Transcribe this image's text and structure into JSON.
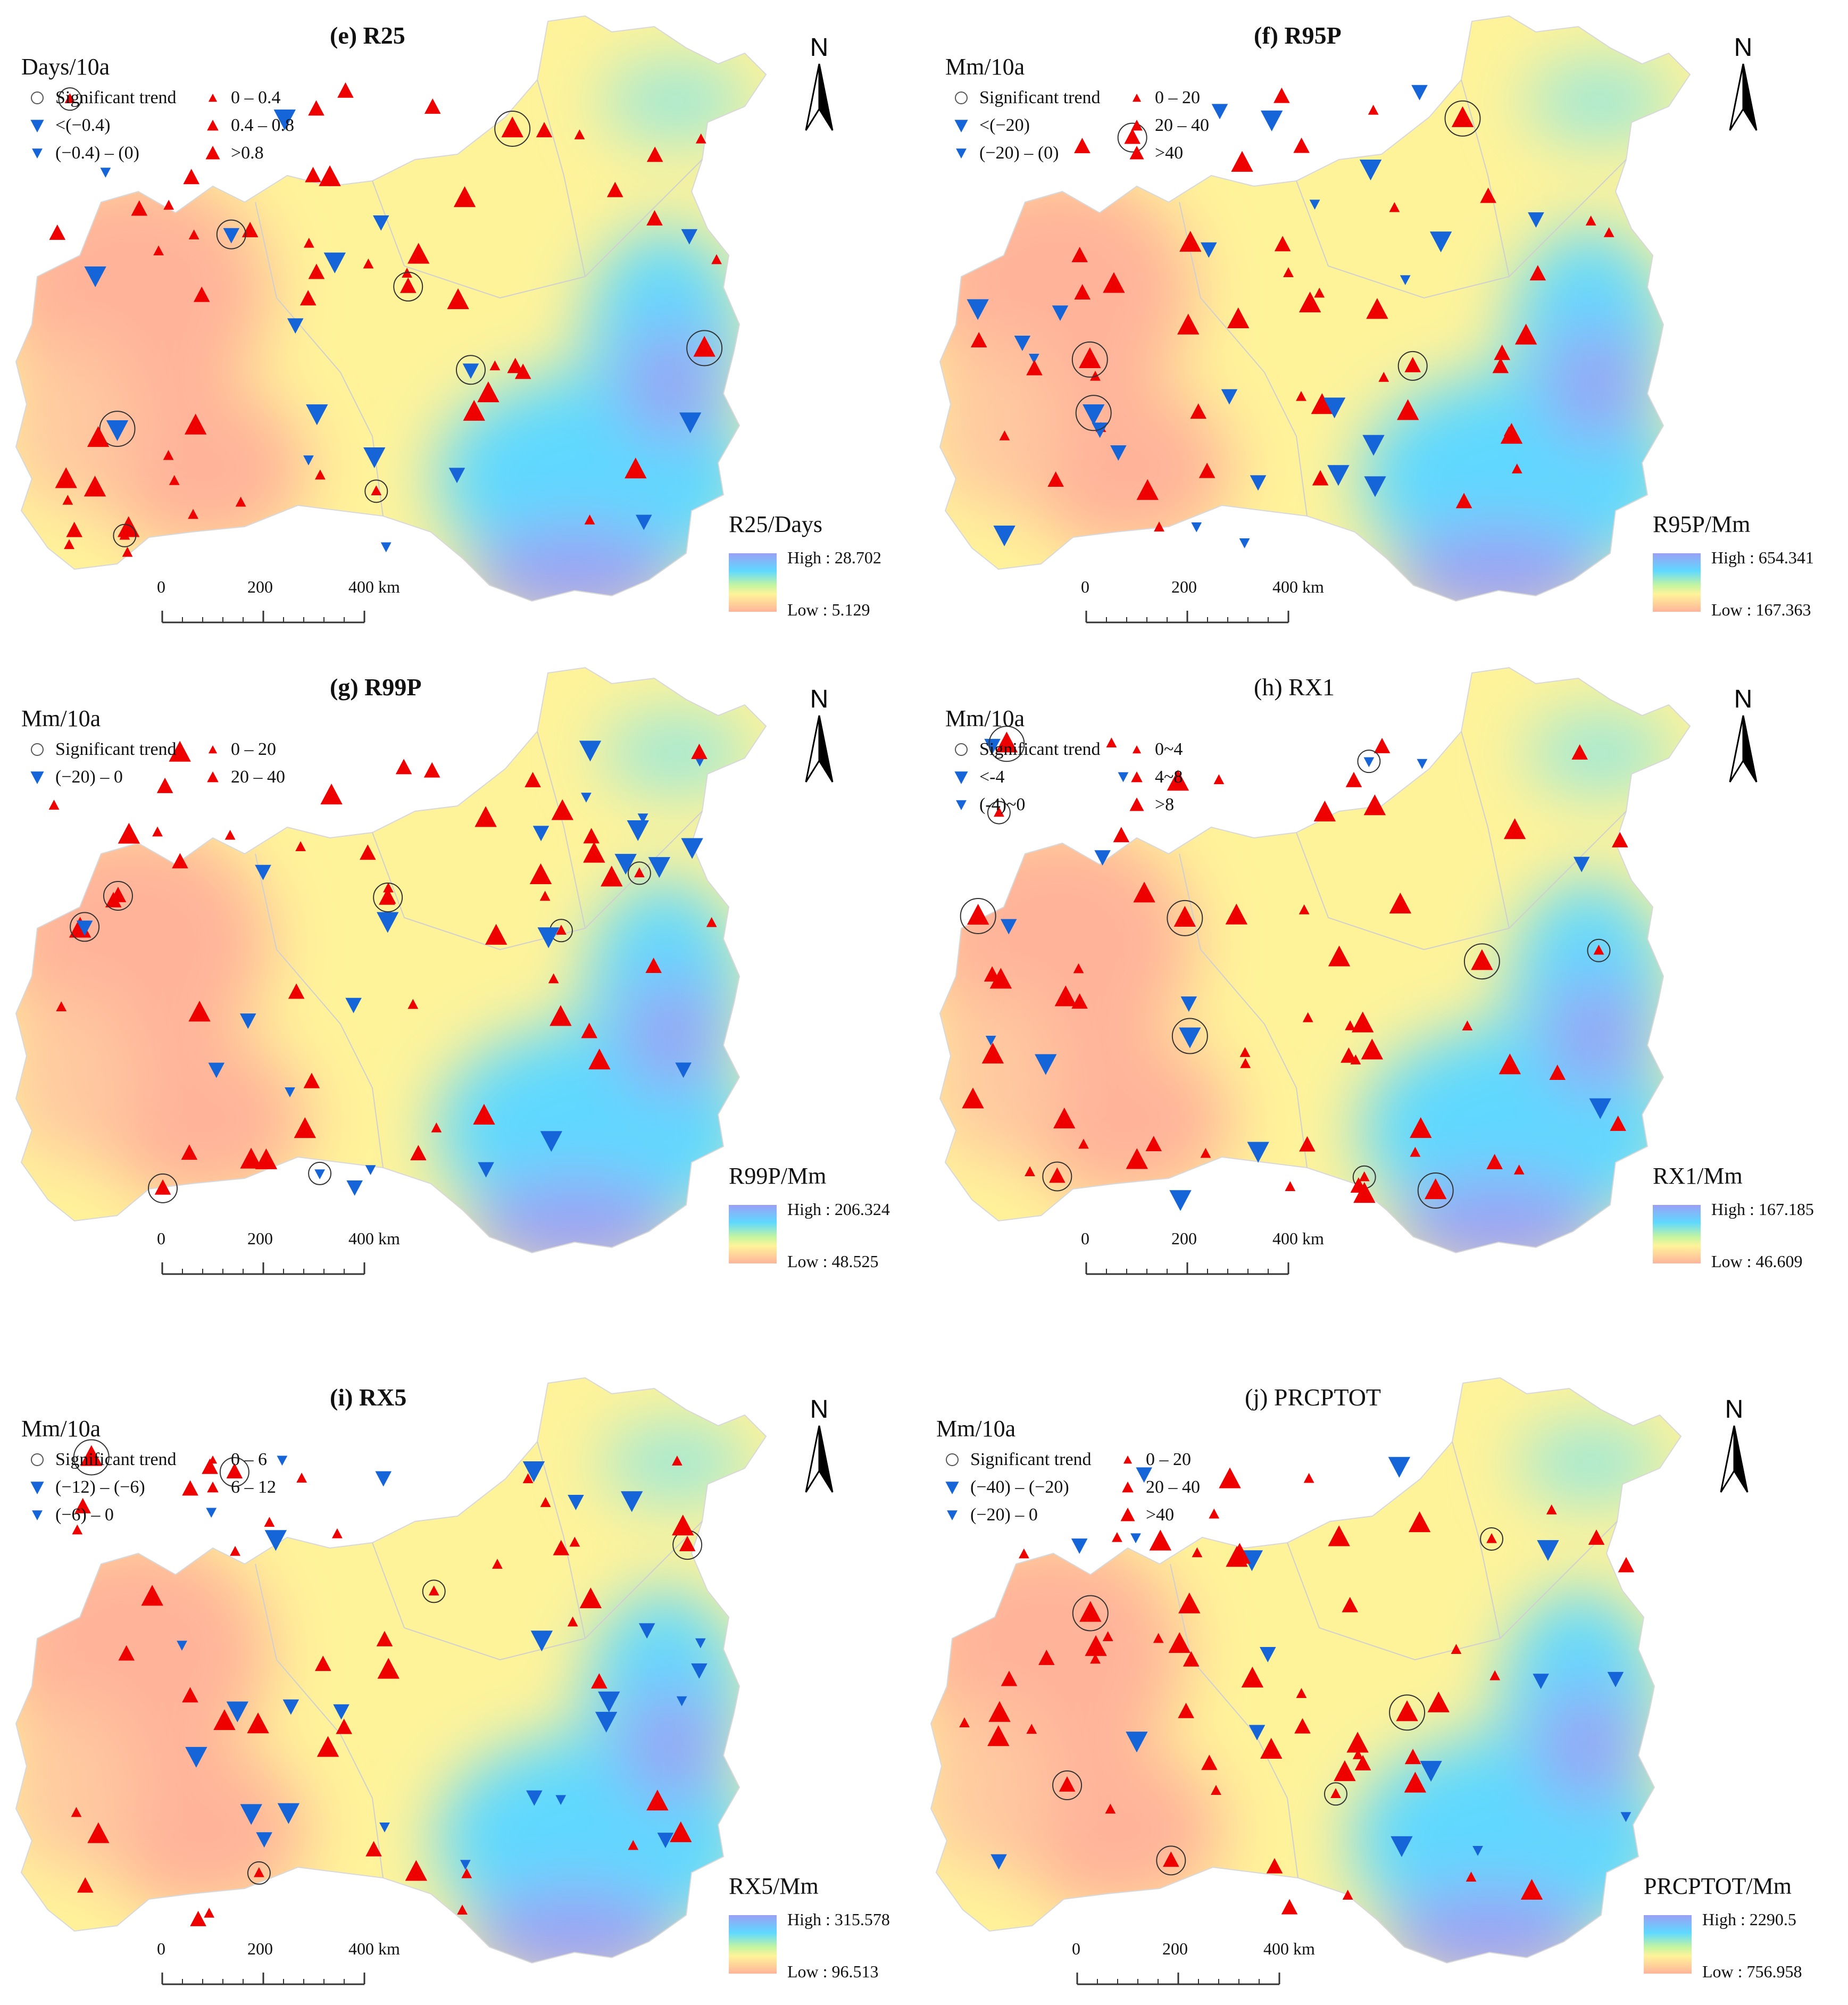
{
  "colors": {
    "high": "#9aa0f5",
    "cyan": "#5fd8ff",
    "mid": "#fff39a",
    "low": "#ffb49a",
    "increase": "#ee0000",
    "decrease": "#1565d8"
  },
  "scalebar": {
    "labels": [
      "0",
      "200",
      "400 km"
    ]
  },
  "north_label": "N",
  "panels": [
    {
      "title": "(e) R25",
      "unit": "Days/10a",
      "legend": [
        "Significant trend",
        "<(−0.4)",
        "(−0.4) – (0)",
        "0 – 0.4",
        "0.4 – 0.8",
        ">0.8"
      ],
      "colorbar_title": "R25/Days",
      "high": "High : 28.702",
      "low": "Low : 5.129"
    },
    {
      "title": "(f) R95P",
      "unit": "Mm/10a",
      "legend": [
        "Significant trend",
        "<(−20)",
        "(−20) – (0)",
        "0 – 20",
        "20 – 40",
        ">40"
      ],
      "colorbar_title": "R95P/Mm",
      "high": "High : 654.341",
      "low": "Low : 167.363"
    },
    {
      "title": "(g) R99P",
      "unit": "Mm/10a",
      "legend": [
        "Significant trend",
        "(−20) – 0",
        "0 – 20",
        "20 – 40"
      ],
      "colorbar_title": "R99P/Mm",
      "high": "High : 206.324",
      "low": "Low : 48.525"
    },
    {
      "title": "(h) RX1",
      "unit": "Mm/10a",
      "legend": [
        "Significant trend",
        "<-4",
        "(-4)~0",
        "0~4",
        "4~8",
        ">8"
      ],
      "colorbar_title": "RX1/Mm",
      "high": "High : 167.185",
      "low": "Low : 46.609"
    },
    {
      "title": "(i) RX5",
      "unit": "Mm/10a",
      "legend": [
        "Significant trend",
        "(−12) – (−6)",
        "(−6) – 0",
        "0 – 6",
        "6 – 12"
      ],
      "colorbar_title": "RX5/Mm",
      "high": "High : 315.578",
      "low": "Low : 96.513"
    },
    {
      "title": "(j) PRCPTOT",
      "unit": "Mm/10a",
      "legend": [
        "Significant trend",
        "(−40) – (−20)",
        "(−20) – 0",
        "0 – 20",
        "20 – 40",
        ">40"
      ],
      "colorbar_title": "PRCPTOT/Mm",
      "high": "High : 2290.5",
      "low": "Low : 756.958"
    }
  ]
}
